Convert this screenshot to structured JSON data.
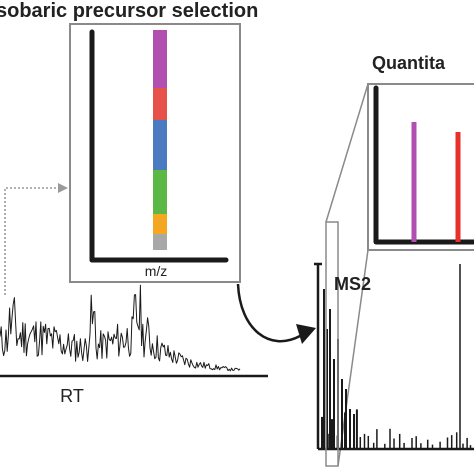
{
  "title": "sobaric precursor selection",
  "inset_mz": {
    "axis_label": "m/z",
    "color_stack": [
      "#b04fb0",
      "#e8504a",
      "#4a7bc0",
      "#5cb845",
      "#f5a623",
      "#a8a8a8"
    ]
  },
  "chromatogram": {
    "xlabel": "RT"
  },
  "ms2": {
    "label": "MS2"
  },
  "quant": {
    "title": "Quantita",
    "reporter_colors": [
      "#b04fb0",
      "#e8302a"
    ]
  },
  "colors": {
    "frame": "#8a8a8a",
    "axis": "#1a1a1a",
    "dotted_connector": "#9a9a9a"
  }
}
